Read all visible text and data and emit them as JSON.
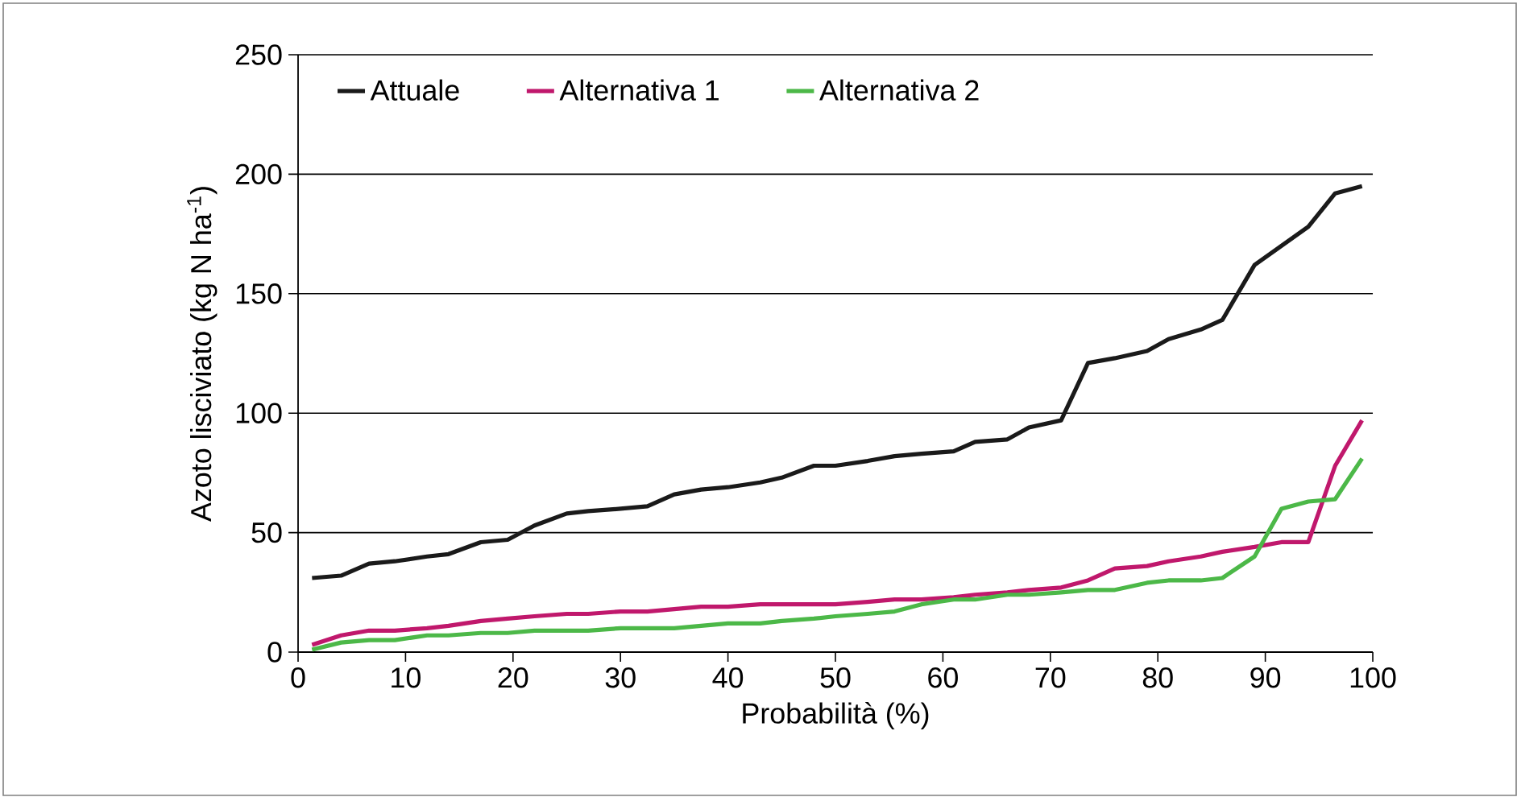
{
  "chart_data": {
    "type": "line",
    "xlabel": "Probabilità (%)",
    "ylabel": "Azoto lisciviato (kg N ha$^{-1}$)",
    "x": [
      1.3,
      4,
      6.6,
      9,
      12,
      14,
      17,
      19.5,
      22,
      25,
      27,
      30,
      32.5,
      35,
      37.5,
      40,
      43,
      45,
      48,
      50,
      53,
      55.5,
      58,
      61,
      63,
      66,
      68,
      71,
      73.5,
      76,
      79,
      81,
      84,
      86,
      89,
      91.5,
      94,
      96.5,
      99
    ],
    "series": [
      {
        "name": "Attuale",
        "color": "#1a1a1a",
        "values": [
          31,
          32,
          37,
          38,
          40,
          41,
          46,
          47,
          53,
          58,
          59,
          60,
          61,
          66,
          68,
          69,
          71,
          73,
          78,
          78,
          80,
          82,
          83,
          84,
          88,
          89,
          94,
          97,
          121,
          123,
          126,
          131,
          135,
          139,
          162,
          170,
          178,
          192,
          195
        ]
      },
      {
        "name": "Alternativa 1",
        "color": "#c0186c",
        "values": [
          3,
          7,
          9,
          9,
          10,
          11,
          13,
          14,
          15,
          16,
          16,
          17,
          17,
          18,
          19,
          19,
          20,
          20,
          20,
          20,
          21,
          22,
          22,
          23,
          24,
          25,
          26,
          27,
          30,
          35,
          36,
          38,
          40,
          42,
          44,
          46,
          46,
          78,
          97
        ]
      },
      {
        "name": "Alternativa 2",
        "color": "#4cb848",
        "values": [
          1,
          4,
          5,
          5,
          7,
          7,
          8,
          8,
          9,
          9,
          9,
          10,
          10,
          10,
          11,
          12,
          12,
          13,
          14,
          15,
          16,
          17,
          20,
          22,
          22,
          24,
          24,
          25,
          26,
          26,
          29,
          30,
          30,
          31,
          40,
          60,
          63,
          64,
          81
        ]
      }
    ],
    "xlim": [
      0,
      100
    ],
    "xticks": [
      0,
      10,
      20,
      30,
      40,
      50,
      60,
      70,
      80,
      90,
      100
    ],
    "ylim": [
      0,
      250
    ],
    "yticks": [
      0,
      50,
      100,
      150,
      200,
      250
    ],
    "grid": "y",
    "legend": "top",
    "line_style": "solid"
  }
}
